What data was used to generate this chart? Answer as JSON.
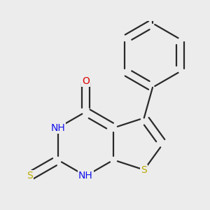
{
  "bg_color": "#ececec",
  "bond_color": "#2a2a2a",
  "bond_width": 1.6,
  "atom_colors": {
    "O": "#dd0000",
    "S": "#bbaa00",
    "N": "#1111ee",
    "C": "#2a2a2a"
  },
  "font_size": 10,
  "fig_size": [
    3.0,
    3.0
  ],
  "dpi": 100
}
